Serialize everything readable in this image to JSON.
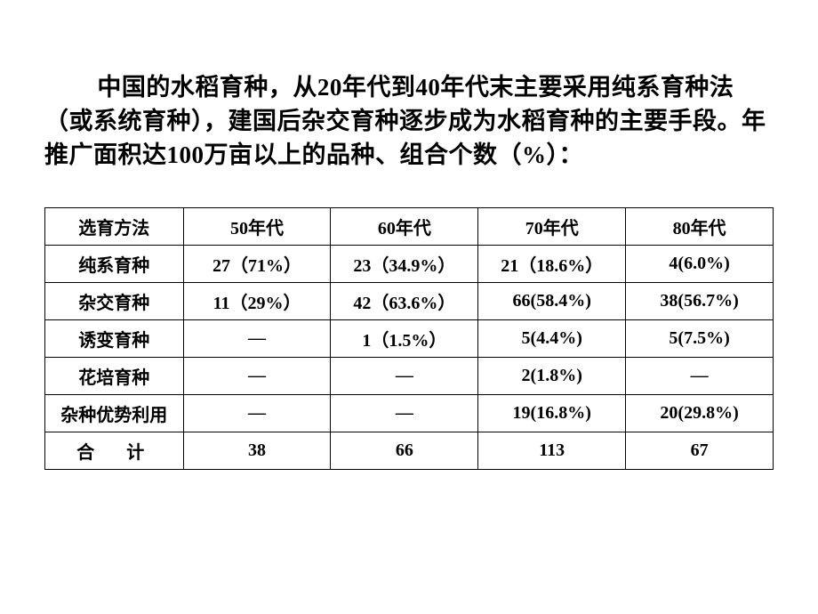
{
  "paragraph": "中国的水稻育种，从20年代到40年代末主要采用纯系育种法（或系统育种），建国后杂交育种逐步成为水稻育种的主要手段。年推广面积达100万亩以上的品种、组合个数（%）：",
  "table": {
    "columns": [
      "选育方法",
      "50年代",
      "60年代",
      "70年代",
      "80年代"
    ],
    "rows": [
      [
        "纯系育种",
        "27（71%）",
        "23（34.9%）",
        "21（18.6%）",
        "4(6.0%)"
      ],
      [
        "杂交育种",
        "11（29%）",
        "42（63.6%）",
        "66(58.4%)",
        "38(56.7%)"
      ],
      [
        "诱变育种",
        "—",
        "1（1.5%）",
        "5(4.4%)",
        "5(7.5%)"
      ],
      [
        "花培育种",
        "—",
        "—",
        "2(1.8%)",
        "—"
      ],
      [
        "杂种优势利用",
        "—",
        "—",
        "19(16.8%)",
        "20(29.8%)"
      ],
      [
        "合　计",
        "38",
        "66",
        "113",
        "67"
      ]
    ],
    "border_color": "#000000",
    "text_color": "#000000",
    "background_color": "#ffffff",
    "header_fontsize": 20,
    "cell_fontsize": 20,
    "font_weight": "bold"
  },
  "paragraph_style": {
    "fontsize": 27,
    "font_weight": "bold",
    "color": "#000000",
    "indent_chars": 2
  }
}
